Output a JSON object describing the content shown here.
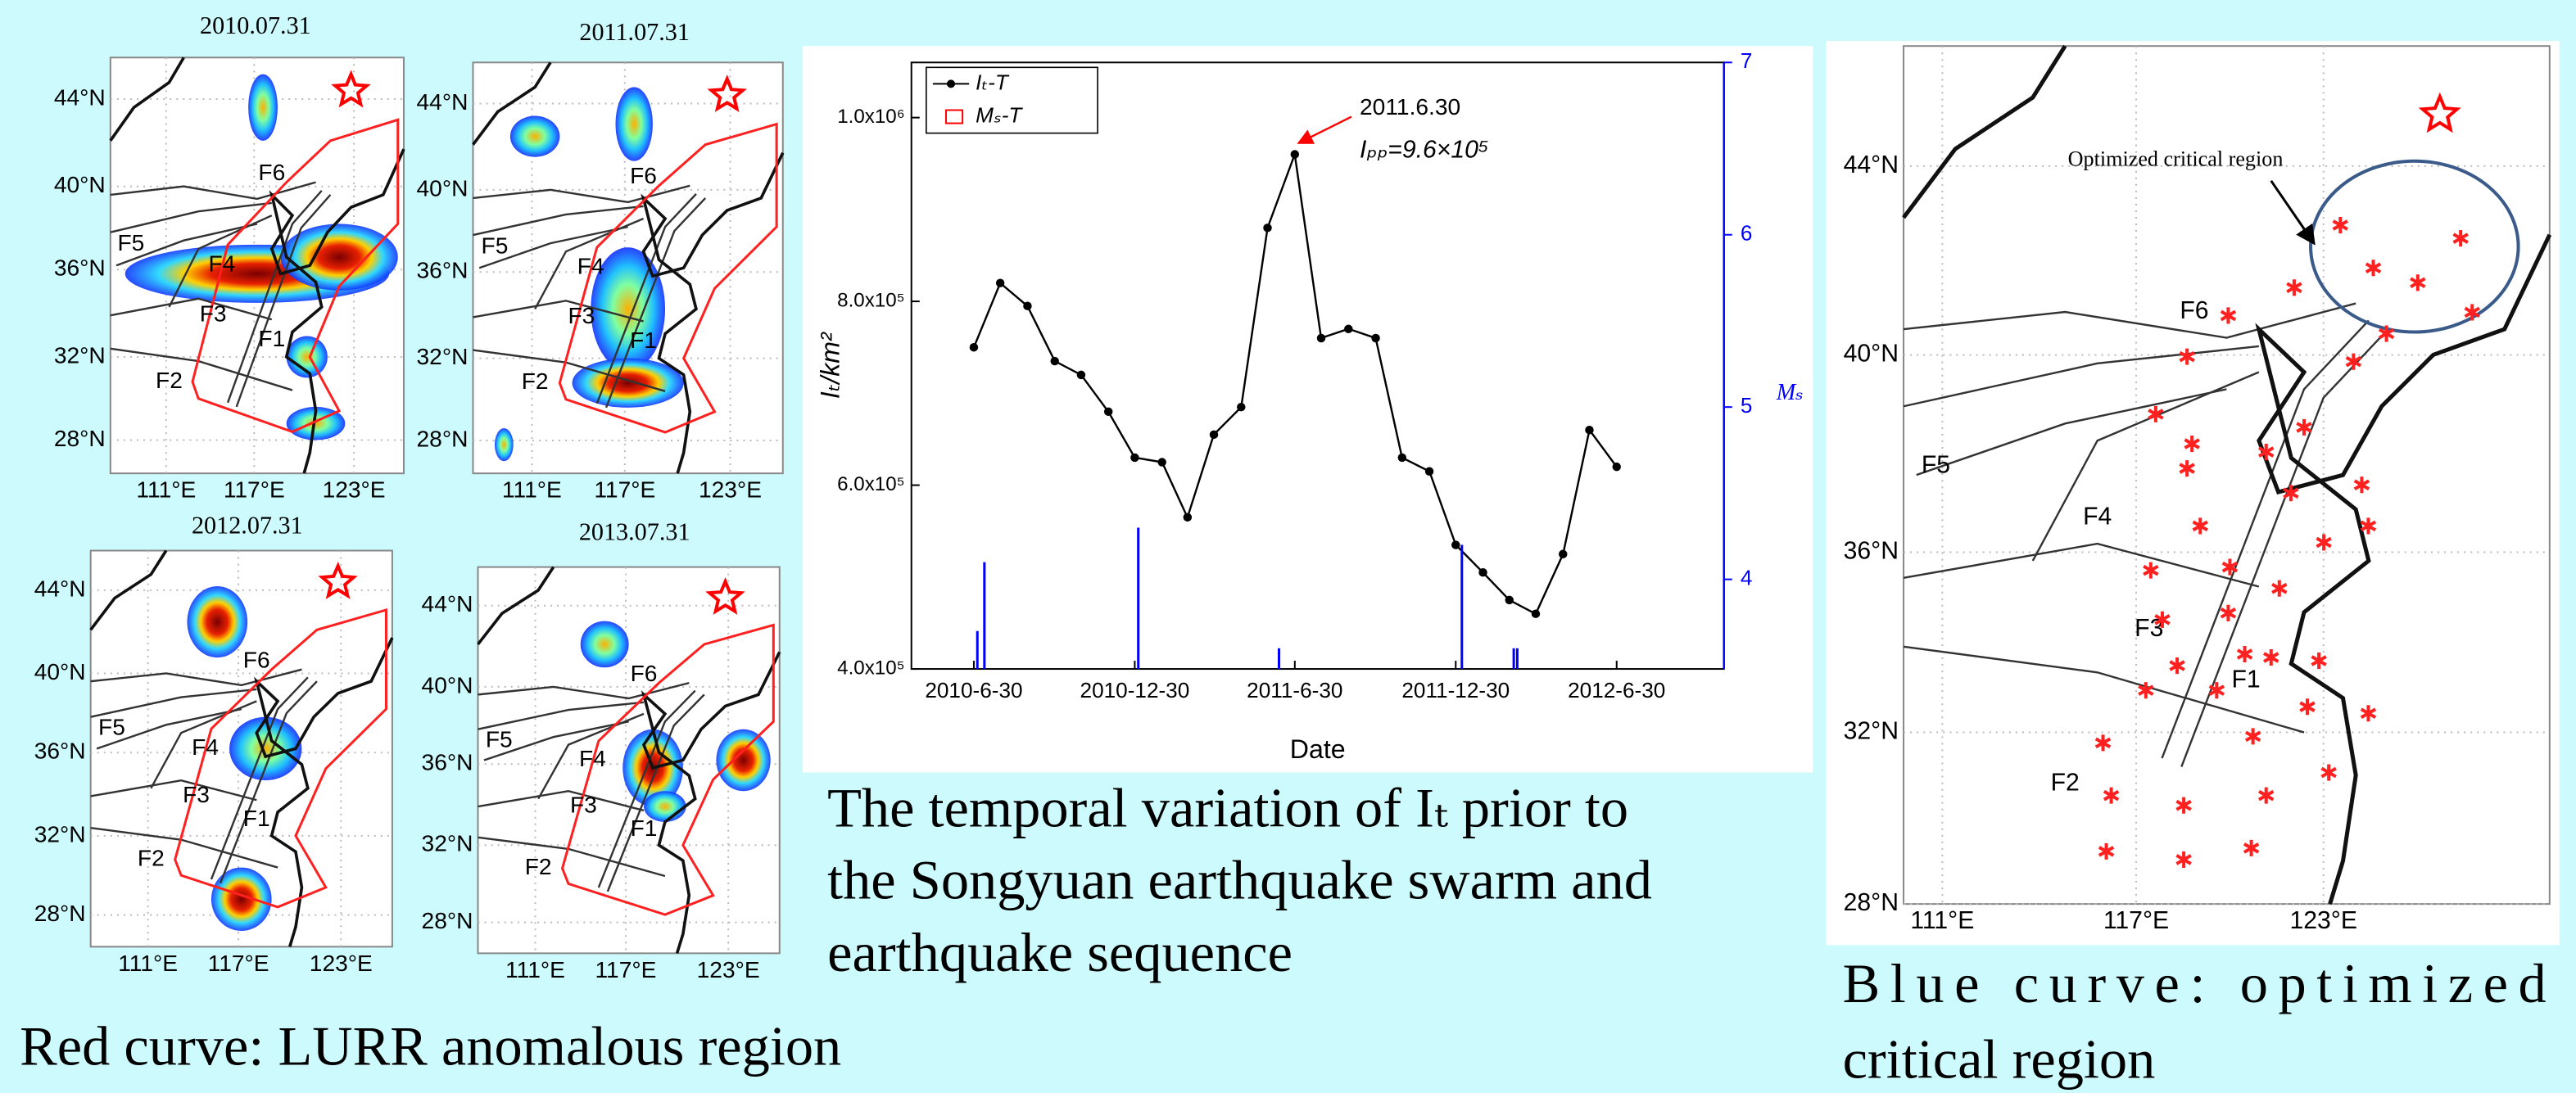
{
  "maps": {
    "panels": [
      {
        "title": "2010.07.31"
      },
      {
        "title": "2011.07.31"
      },
      {
        "title": "2012.07.31"
      },
      {
        "title": "2013.07.31"
      }
    ],
    "lat_labels": [
      "44°N",
      "40°N",
      "36°N",
      "32°N",
      "28°N"
    ],
    "lon_labels": [
      "111°E",
      "117°E",
      "123°E"
    ],
    "faults": [
      "F1",
      "F2",
      "F3",
      "F4",
      "F5",
      "F6"
    ],
    "caption": "Red curve: LURR anomalous region"
  },
  "chart_data": {
    "type": "line",
    "xlabel": "Date",
    "ylabel": "Iₜ/km²",
    "y2label": "Mₛ",
    "xlim": [
      "2010-4-20",
      "2012-10-30"
    ],
    "xticks": [
      "2010-6-30",
      "2010-12-30",
      "2011-6-30",
      "2011-12-30",
      "2012-6-30"
    ],
    "ylim": [
      400000,
      1060000
    ],
    "yticks": [
      {
        "value": 400000,
        "label": "4.0x10⁵"
      },
      {
        "value": 600000,
        "label": "6.0x10⁵"
      },
      {
        "value": 800000,
        "label": "8.0x10⁵"
      },
      {
        "value": 1000000,
        "label": "1.0x10⁶"
      }
    ],
    "y2lim": [
      3.48,
      7
    ],
    "y2ticks": [
      4,
      5,
      6,
      7
    ],
    "series": [
      {
        "name": "Iₜ-T",
        "color": "#000000",
        "x": [
          "2010-6-30",
          "2010-7-30",
          "2010-8-30",
          "2010-9-30",
          "2010-10-30",
          "2010-11-30",
          "2010-12-30",
          "2011-1-30",
          "2011-2-28",
          "2011-3-30",
          "2011-4-30",
          "2011-5-30",
          "2011-6-30",
          "2011-7-30",
          "2011-8-30",
          "2011-9-30",
          "2011-10-30",
          "2011-11-30",
          "2011-12-30",
          "2012-1-30",
          "2012-2-29",
          "2012-3-30",
          "2012-4-30",
          "2012-5-30",
          "2012-6-30"
        ],
        "values": [
          750000,
          820000,
          795000,
          735000,
          720000,
          680000,
          630000,
          625000,
          565000,
          655000,
          685000,
          880000,
          960000,
          760000,
          770000,
          760000,
          630000,
          615000,
          535000,
          505000,
          475000,
          460000,
          525000,
          660000,
          620000
        ]
      },
      {
        "name": "Mₛ-T",
        "color": "#0000ff",
        "marker_color": "#ff0000",
        "axis": "y2",
        "x": [
          "2010-7-4",
          "2010-7-12",
          "2011-1-3",
          "2011-6-12",
          "2012-1-6",
          "2012-3-5",
          "2012-3-9"
        ],
        "values": [
          3.7,
          4.1,
          4.3,
          3.6,
          4.2,
          3.6,
          3.6
        ]
      }
    ],
    "annotations": [
      "2011.6.30",
      "Iₚₚ=9.6×10⁵"
    ],
    "annotation_color": "#ff0000"
  },
  "chart_caption": [
    "The temporal variation of Iₜ prior to",
    "the Songyuan earthquake swarm and",
    "earthquake sequence"
  ],
  "critical_map": {
    "annotation": "Optimized critical region",
    "caption": [
      "Blue curve: optimized",
      "critical region"
    ]
  }
}
